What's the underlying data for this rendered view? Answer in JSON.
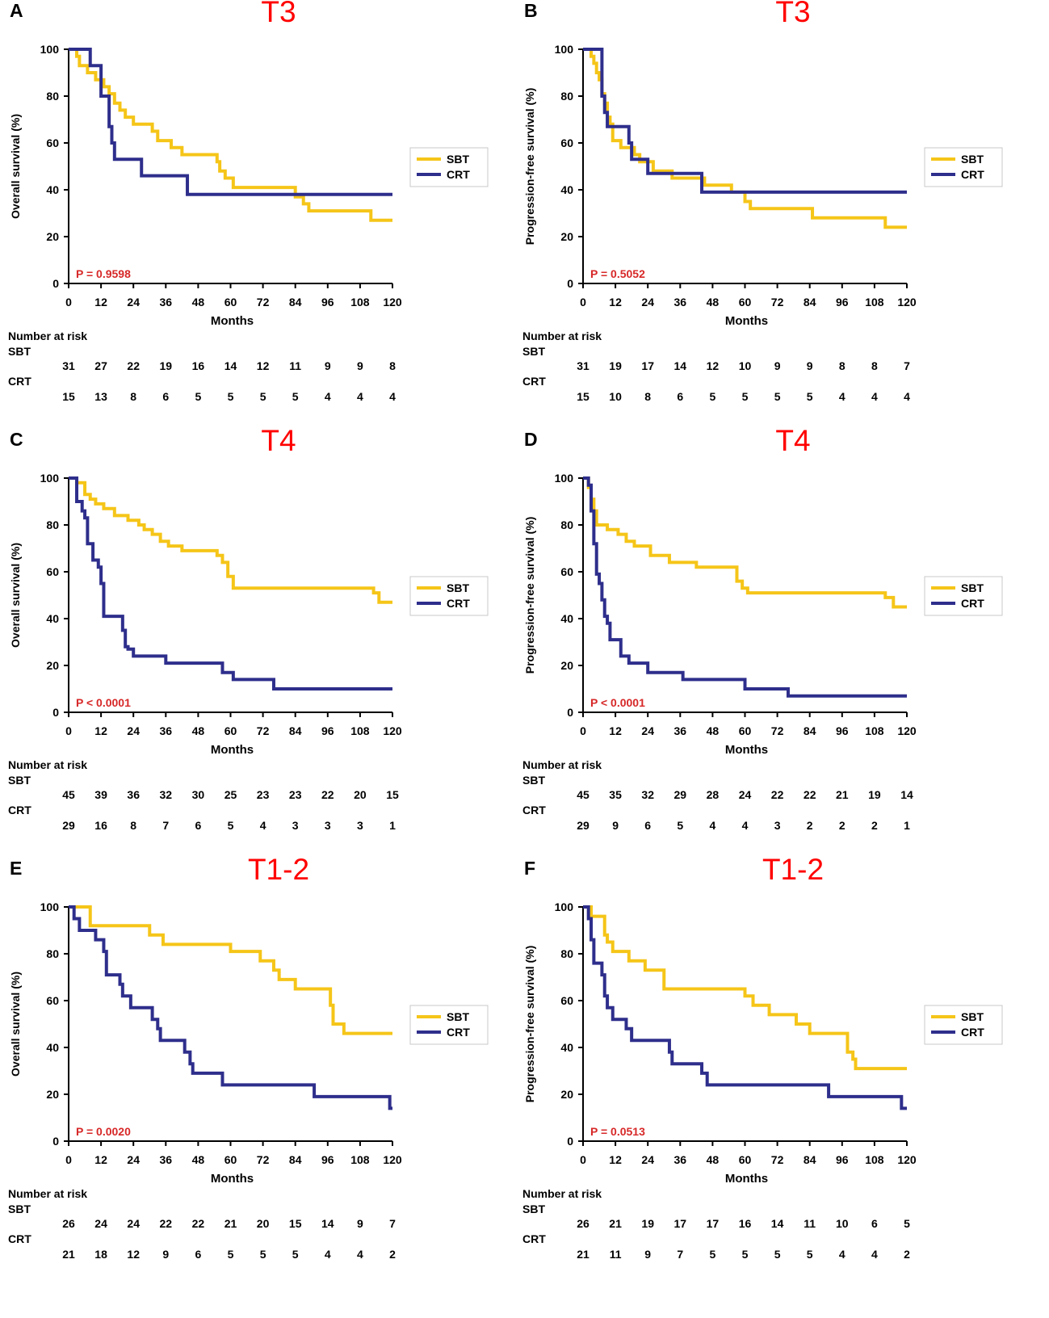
{
  "colors": {
    "sbt": "#f5c518",
    "crt": "#2e2e8c",
    "title": "#ff0000",
    "pvalue": "#d72828"
  },
  "common": {
    "xlabel": "Months",
    "risk_title": "Number at risk",
    "series_labels": [
      "SBT",
      "CRT"
    ],
    "risk_months": [
      0,
      12,
      24,
      36,
      48,
      60,
      72,
      84,
      96,
      108,
      120
    ]
  },
  "chart_data": [
    {
      "panel": "A",
      "title": "T3",
      "type": "line",
      "step": true,
      "ylabel": "Overall survival (%)",
      "xlabel": "Months",
      "xlim": [
        0,
        120
      ],
      "ylim": [
        0,
        100
      ],
      "xticks": [
        0,
        12,
        24,
        36,
        48,
        60,
        72,
        84,
        96,
        108,
        120
      ],
      "yticks": [
        0,
        20,
        40,
        60,
        80,
        100
      ],
      "p_value": "P = 0.9598",
      "series": [
        {
          "name": "SBT",
          "x": [
            0,
            3,
            4,
            7,
            10,
            13,
            15,
            17,
            19,
            21,
            24,
            31,
            33,
            38,
            42,
            44,
            48,
            55,
            56,
            58,
            61,
            68,
            84,
            87,
            89,
            112,
            120
          ],
          "y": [
            100,
            97,
            93,
            90,
            87,
            84,
            81,
            77,
            74,
            71,
            68,
            65,
            61,
            58,
            55,
            55,
            55,
            52,
            48,
            45,
            41,
            41,
            37,
            34,
            31,
            27,
            27
          ]
        },
        {
          "name": "CRT",
          "x": [
            0,
            8,
            12,
            15,
            16,
            17,
            18,
            27,
            44,
            120
          ],
          "y": [
            100,
            93,
            80,
            67,
            60,
            53,
            53,
            46,
            38,
            38
          ]
        }
      ],
      "risk": {
        "SBT": [
          31,
          27,
          22,
          19,
          16,
          14,
          12,
          11,
          9,
          9,
          8
        ],
        "CRT": [
          15,
          13,
          8,
          6,
          5,
          5,
          5,
          5,
          4,
          4,
          4
        ]
      }
    },
    {
      "panel": "B",
      "title": "T3",
      "type": "line",
      "step": true,
      "ylabel": "Progression-free survival (%)",
      "xlabel": "Months",
      "xlim": [
        0,
        120
      ],
      "ylim": [
        0,
        100
      ],
      "xticks": [
        0,
        12,
        24,
        36,
        48,
        60,
        72,
        84,
        96,
        108,
        120
      ],
      "yticks": [
        0,
        20,
        40,
        60,
        80,
        100
      ],
      "p_value": "P = 0.5052",
      "series": [
        {
          "name": "SBT",
          "x": [
            0,
            3,
            4,
            5,
            6,
            7,
            8,
            9,
            10,
            11,
            14,
            16,
            19,
            21,
            24,
            26,
            30,
            33,
            38,
            45,
            50,
            55,
            60,
            62,
            85,
            112,
            120
          ],
          "y": [
            100,
            97,
            94,
            90,
            87,
            81,
            77,
            71,
            68,
            61,
            58,
            58,
            55,
            52,
            52,
            48,
            48,
            45,
            45,
            42,
            42,
            39,
            35,
            32,
            28,
            24,
            24
          ]
        },
        {
          "name": "CRT",
          "x": [
            0,
            7,
            8,
            9,
            16,
            17,
            18,
            24,
            44,
            120
          ],
          "y": [
            100,
            80,
            73,
            67,
            67,
            60,
            53,
            47,
            39,
            39
          ]
        }
      ],
      "risk": {
        "SBT": [
          31,
          19,
          17,
          14,
          12,
          10,
          9,
          9,
          8,
          8,
          7
        ],
        "CRT": [
          15,
          10,
          8,
          6,
          5,
          5,
          5,
          5,
          4,
          4,
          4
        ]
      }
    },
    {
      "panel": "C",
      "title": "T4",
      "type": "line",
      "step": true,
      "ylabel": "Overall survival (%)",
      "xlabel": "Months",
      "xlim": [
        0,
        120
      ],
      "ylim": [
        0,
        100
      ],
      "xticks": [
        0,
        12,
        24,
        36,
        48,
        60,
        72,
        84,
        96,
        108,
        120
      ],
      "yticks": [
        0,
        20,
        40,
        60,
        80,
        100
      ],
      "p_value": "P < 0.0001",
      "series": [
        {
          "name": "SBT",
          "x": [
            0,
            3,
            6,
            8,
            10,
            13,
            17,
            22,
            26,
            28,
            31,
            34,
            37,
            42,
            55,
            57,
            59,
            61,
            113,
            115,
            120
          ],
          "y": [
            100,
            98,
            93,
            91,
            89,
            87,
            84,
            82,
            80,
            78,
            76,
            73,
            71,
            69,
            67,
            64,
            58,
            53,
            51,
            47,
            47
          ]
        },
        {
          "name": "CRT",
          "x": [
            0,
            3,
            5,
            6,
            7,
            9,
            11,
            12,
            13,
            20,
            21,
            22,
            24,
            36,
            57,
            61,
            76,
            120
          ],
          "y": [
            100,
            90,
            86,
            83,
            72,
            65,
            62,
            55,
            41,
            35,
            28,
            27,
            24,
            21,
            17,
            14,
            10,
            10
          ]
        }
      ],
      "risk": {
        "SBT": [
          45,
          39,
          36,
          32,
          30,
          25,
          23,
          23,
          22,
          20,
          15
        ],
        "CRT": [
          29,
          16,
          8,
          7,
          6,
          5,
          4,
          3,
          3,
          3,
          1
        ]
      }
    },
    {
      "panel": "D",
      "title": "T4",
      "type": "line",
      "step": true,
      "ylabel": "Progression-free survival (%)",
      "xlabel": "Months",
      "xlim": [
        0,
        120
      ],
      "ylim": [
        0,
        100
      ],
      "xticks": [
        0,
        12,
        24,
        36,
        48,
        60,
        72,
        84,
        96,
        108,
        120
      ],
      "yticks": [
        0,
        20,
        40,
        60,
        80,
        100
      ],
      "p_value": "P < 0.0001",
      "series": [
        {
          "name": "SBT",
          "x": [
            0,
            2,
            3,
            4,
            5,
            9,
            13,
            16,
            19,
            25,
            32,
            36,
            42,
            57,
            59,
            61,
            112,
            115,
            120
          ],
          "y": [
            100,
            96,
            91,
            86,
            80,
            78,
            76,
            73,
            71,
            67,
            64,
            64,
            62,
            56,
            53,
            51,
            49,
            45,
            45
          ]
        },
        {
          "name": "CRT",
          "x": [
            0,
            2,
            3,
            4,
            5,
            6,
            7,
            8,
            9,
            10,
            14,
            17,
            24,
            37,
            60,
            76,
            120
          ],
          "y": [
            100,
            97,
            86,
            72,
            59,
            55,
            48,
            41,
            38,
            31,
            24,
            21,
            17,
            14,
            10,
            7,
            7
          ]
        }
      ],
      "risk": {
        "SBT": [
          45,
          35,
          32,
          29,
          28,
          24,
          22,
          22,
          21,
          19,
          14
        ],
        "CRT": [
          29,
          9,
          6,
          5,
          4,
          4,
          3,
          2,
          2,
          2,
          1
        ]
      }
    },
    {
      "panel": "E",
      "title": "T1-2",
      "type": "line",
      "step": true,
      "ylabel": "Overall survival (%)",
      "xlabel": "Months",
      "xlim": [
        0,
        120
      ],
      "ylim": [
        0,
        100
      ],
      "xticks": [
        0,
        12,
        24,
        36,
        48,
        60,
        72,
        84,
        96,
        108,
        120
      ],
      "yticks": [
        0,
        20,
        40,
        60,
        80,
        100
      ],
      "p_value": "P = 0.0020",
      "series": [
        {
          "name": "SBT",
          "x": [
            0,
            8,
            30,
            35,
            60,
            71,
            76,
            78,
            80,
            84,
            97,
            98,
            100,
            102,
            120
          ],
          "y": [
            100,
            92,
            88,
            84,
            81,
            77,
            73,
            69,
            69,
            65,
            58,
            50,
            50,
            46,
            46
          ]
        },
        {
          "name": "CRT",
          "x": [
            0,
            2,
            4,
            10,
            13,
            14,
            19,
            20,
            23,
            31,
            33,
            34,
            43,
            45,
            46,
            57,
            91,
            119,
            120
          ],
          "y": [
            100,
            95,
            90,
            86,
            81,
            71,
            67,
            62,
            57,
            52,
            48,
            43,
            38,
            33,
            29,
            24,
            19,
            14,
            14
          ]
        }
      ],
      "risk": {
        "SBT": [
          26,
          24,
          24,
          22,
          22,
          21,
          20,
          15,
          14,
          9,
          7
        ],
        "CRT": [
          21,
          18,
          12,
          9,
          6,
          5,
          5,
          5,
          4,
          4,
          2
        ]
      }
    },
    {
      "panel": "F",
      "title": "T1-2",
      "type": "line",
      "step": true,
      "ylabel": "Progression-free survival (%)",
      "xlabel": "Months",
      "xlim": [
        0,
        120
      ],
      "ylim": [
        0,
        100
      ],
      "xticks": [
        0,
        12,
        24,
        36,
        48,
        60,
        72,
        84,
        96,
        108,
        120
      ],
      "yticks": [
        0,
        20,
        40,
        60,
        80,
        100
      ],
      "p_value": "P = 0.0513",
      "series": [
        {
          "name": "SBT",
          "x": [
            0,
            3,
            8,
            9,
            11,
            17,
            23,
            30,
            60,
            63,
            69,
            79,
            84,
            98,
            100,
            101,
            120
          ],
          "y": [
            100,
            96,
            88,
            85,
            81,
            77,
            73,
            65,
            62,
            58,
            54,
            50,
            46,
            38,
            35,
            31,
            31
          ]
        },
        {
          "name": "CRT",
          "x": [
            0,
            2,
            3,
            4,
            7,
            8,
            9,
            11,
            16,
            18,
            32,
            33,
            44,
            46,
            91,
            118,
            120
          ],
          "y": [
            100,
            95,
            86,
            76,
            71,
            62,
            57,
            52,
            48,
            43,
            38,
            33,
            29,
            24,
            19,
            14,
            14
          ]
        }
      ],
      "risk": {
        "SBT": [
          26,
          21,
          19,
          17,
          17,
          16,
          14,
          11,
          10,
          6,
          5
        ],
        "CRT": [
          21,
          11,
          9,
          7,
          5,
          5,
          5,
          5,
          4,
          4,
          2
        ]
      }
    }
  ]
}
